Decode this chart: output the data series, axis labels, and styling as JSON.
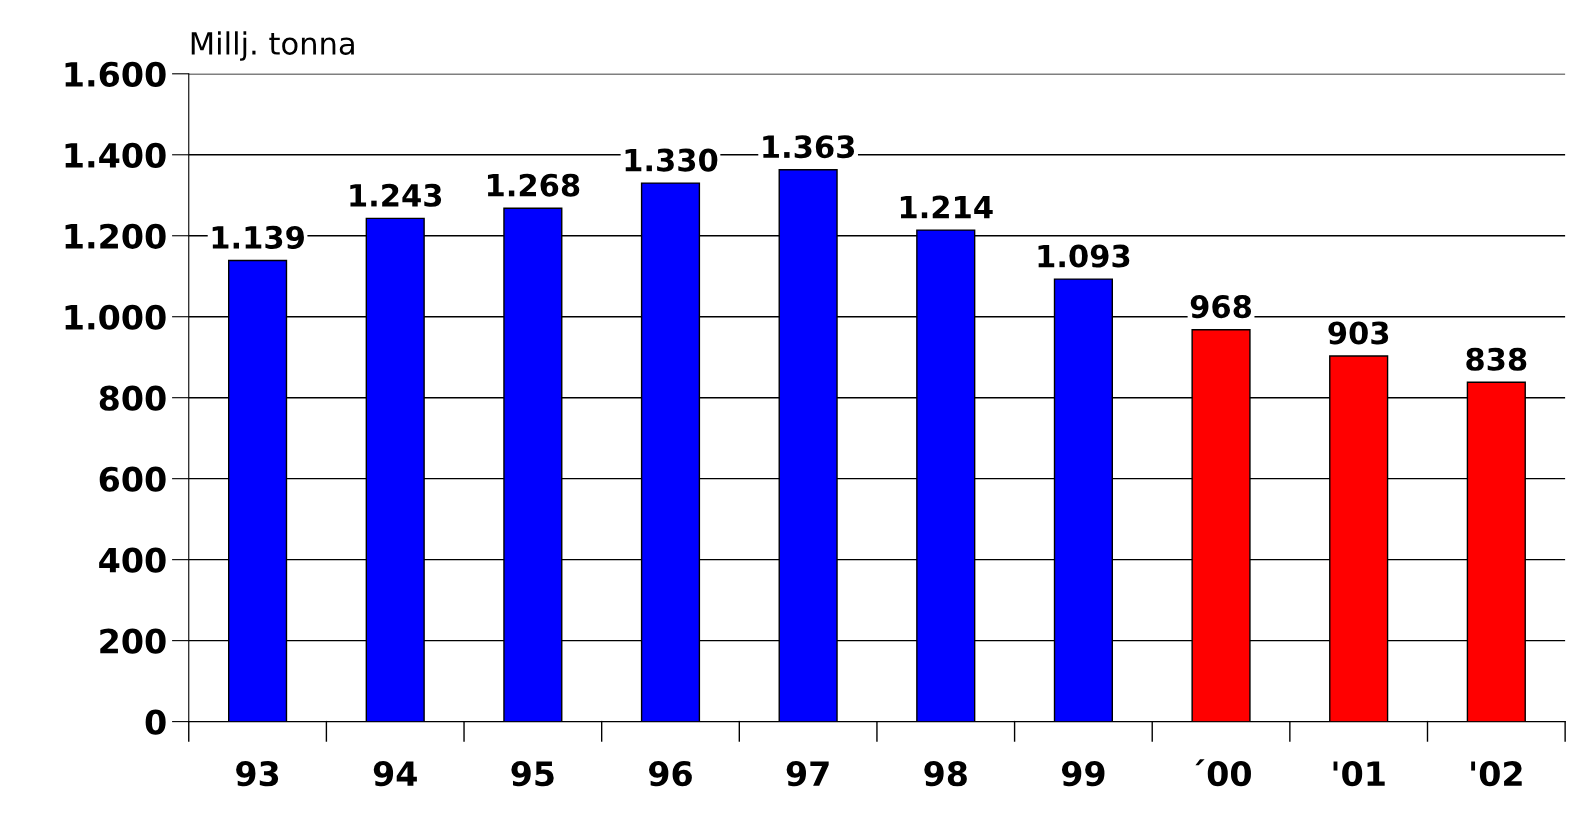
{
  "chart_data": {
    "type": "bar",
    "ylabel": "Millj. tonna",
    "categories": [
      "93",
      "94",
      "95",
      "96",
      "97",
      "98",
      "99",
      "´00",
      "'01",
      "'02"
    ],
    "values": [
      1139,
      1243,
      1268,
      1330,
      1363,
      1214,
      1093,
      968,
      903,
      838
    ],
    "colors": [
      "#0000ff",
      "#0000ff",
      "#0000ff",
      "#0000ff",
      "#0000ff",
      "#0000ff",
      "#0000ff",
      "#ff0000",
      "#ff0000",
      "#ff0000"
    ],
    "value_labels": [
      "1.139",
      "1.243",
      "1.268",
      "1.330",
      "1.363",
      "1.214",
      "1.093",
      "968",
      "903",
      "838"
    ],
    "ylim": [
      0,
      1600
    ],
    "yticks": [
      0,
      200,
      400,
      600,
      800,
      {
        "value": 1000,
        "label": "1.000"
      },
      {
        "value": 1200,
        "label": "1.200"
      },
      {
        "value": 1400,
        "label": "1.400"
      },
      {
        "value": 1600,
        "label": "1.600"
      }
    ],
    "grid": "y",
    "legend": false
  }
}
